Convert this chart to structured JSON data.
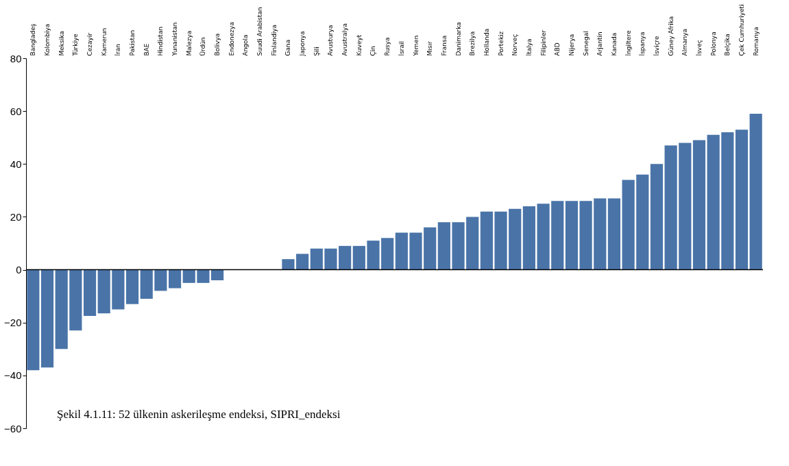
{
  "chart_data": {
    "type": "bar",
    "categories": [
      "Bangladeş",
      "Kolombiya",
      "Meksika",
      "Türkiye",
      "Cezayir",
      "Kamerun",
      "İran",
      "Pakistan",
      "BAE",
      "Hindistan",
      "Yunanistan",
      "Malezya",
      "Ürdün",
      "Bolivya",
      "Endonezya",
      "Angola",
      "Suudi Arabistan",
      "Finlandiya",
      "Gana",
      "Japonya",
      "Şili",
      "Avusturya",
      "Avustralya",
      "Kuveyt",
      "Çin",
      "Rusya",
      "İsrail",
      "Yemen",
      "Mısır",
      "Fransa",
      "Danimarka",
      "Brezilya",
      "Hollanda",
      "Portekiz",
      "Norveç",
      "İtalya",
      "Filipinler",
      "ABD",
      "Nijerya",
      "Senegal",
      "Arjantin",
      "Kanada",
      "İngiltere",
      "İspanya",
      "İsviçre",
      "Güney Afrika",
      "Almanya",
      "İsveç",
      "Polonya",
      "Belçika",
      "Çek Cumhuriyeti",
      "Romanya"
    ],
    "series": [
      {
        "color": "#4a74a8",
        "values": [
          -38,
          -37,
          -30,
          -23,
          -17.5,
          -16.5,
          -15,
          -13,
          -11,
          -8,
          -7,
          -5,
          -5,
          -4,
          0,
          0,
          0,
          0,
          4,
          6,
          8,
          8,
          9,
          9,
          11,
          12,
          14,
          14,
          16,
          18,
          18,
          20,
          22,
          22,
          23,
          24,
          25,
          26,
          26,
          26,
          27,
          27,
          34,
          36,
          40,
          47,
          48,
          49,
          51,
          52,
          53,
          59
        ]
      }
    ],
    "ylim": [
      -60,
      80
    ],
    "yticks": [
      -60,
      -40,
      -20,
      0,
      20,
      40,
      60,
      80
    ],
    "legend": false,
    "annotations": [
      "Şekil 4.1.11: 52 ülkenin askerileşme endeksi, SIPRI_endeksi"
    ]
  }
}
